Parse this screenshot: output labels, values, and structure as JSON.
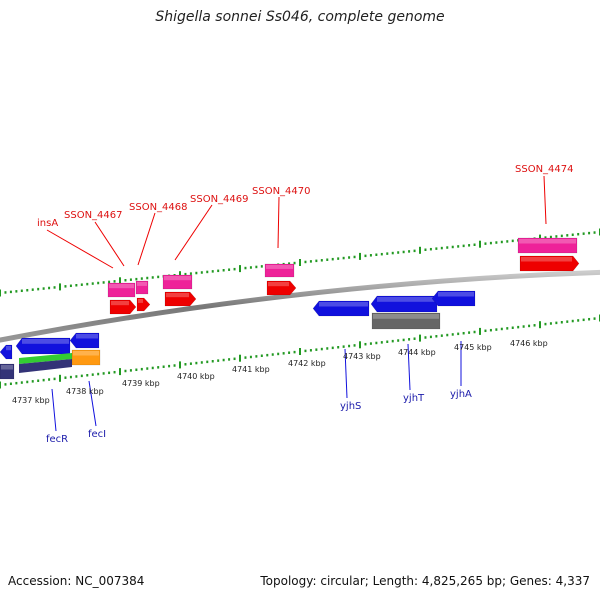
{
  "title": "Shigella sonnei Ss046, complete genome",
  "footer": {
    "accession": "Accession: NC_007384",
    "summary": "Topology: circular; Length: 4,825,265 bp; Genes: 4,337"
  },
  "ticks": [
    "4737 kbp",
    "4738 kbp",
    "4739 kbp",
    "4740 kbp",
    "4741 kbp",
    "4742 kbp",
    "4743 kbp",
    "4744 kbp",
    "4745 kbp",
    "4746 kbp"
  ],
  "upper_genes": [
    "insA",
    "SSON_4467",
    "SSON_4468",
    "SSON_4469",
    "SSON_4470",
    "SSON_4474"
  ],
  "lower_genes": [
    "fecR",
    "fecI",
    "yjhS",
    "yjhT",
    "yjhA"
  ],
  "colors": {
    "upper_label": "#dd1111",
    "lower_label": "#1a1aaa",
    "pink": "#ee2299",
    "red": "#ee0000",
    "blue": "#1111dd",
    "gray": "#666666",
    "green_tick": "#229922",
    "orange": "#ff9911",
    "green": "#33cc33",
    "navy": "#333377"
  }
}
